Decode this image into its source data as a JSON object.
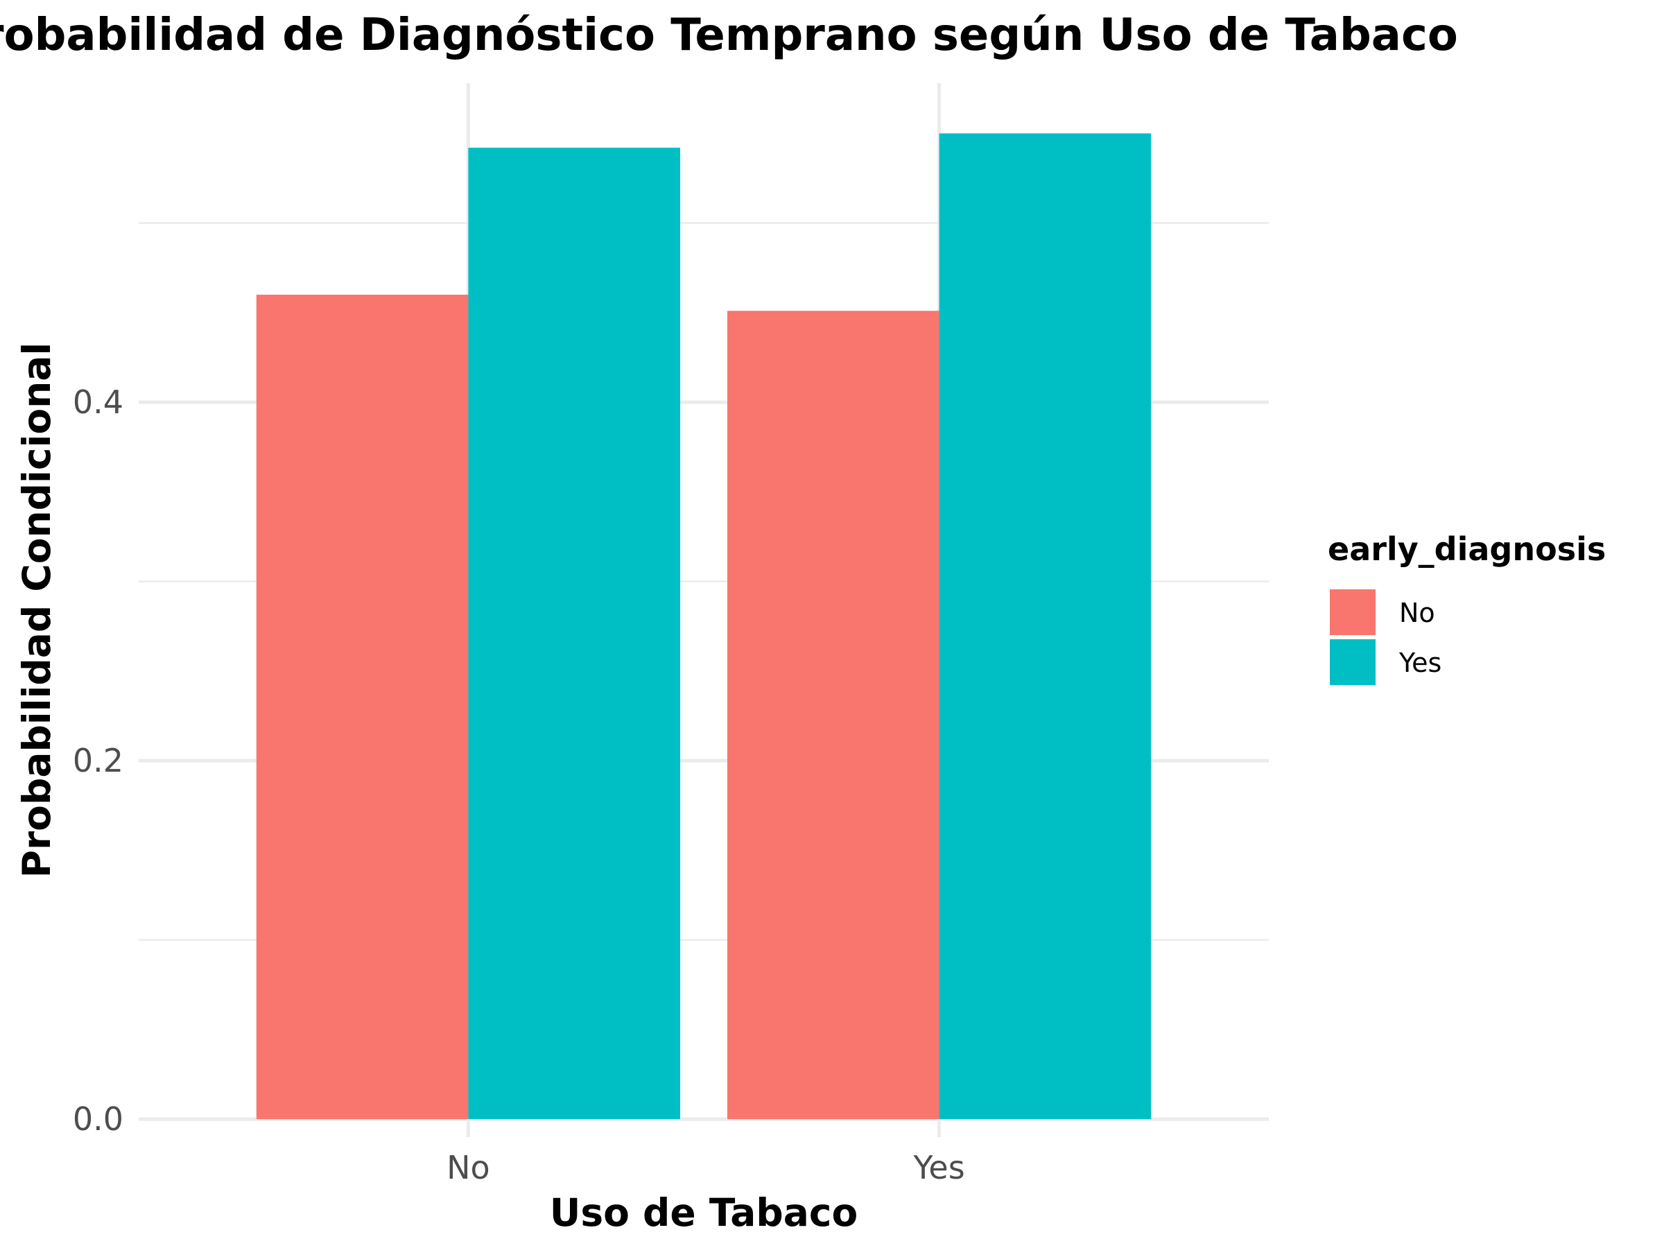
{
  "chart_data": {
    "type": "bar",
    "title": "Probabilidad de Diagnóstico Temprano según Uso de Tabaco",
    "xlabel": "Uso de Tabaco",
    "ylabel": "Probabilidad Condicional",
    "categories": [
      "No",
      "Yes"
    ],
    "series": [
      {
        "name": "No",
        "color": "#F8766D",
        "values": [
          0.46,
          0.451
        ]
      },
      {
        "name": "Yes",
        "color": "#00BFC4",
        "values": [
          0.542,
          0.55
        ]
      }
    ],
    "ylim": [
      -0.01,
      0.578
    ],
    "yticks": [
      0.0,
      0.2,
      0.4
    ],
    "yticks_labels": [
      "0.0",
      "0.2",
      "0.4"
    ],
    "minor_yticks": [
      0.1,
      0.3,
      0.5
    ],
    "legend": {
      "title": "early_diagnosis",
      "position": "right"
    },
    "grid": true
  }
}
